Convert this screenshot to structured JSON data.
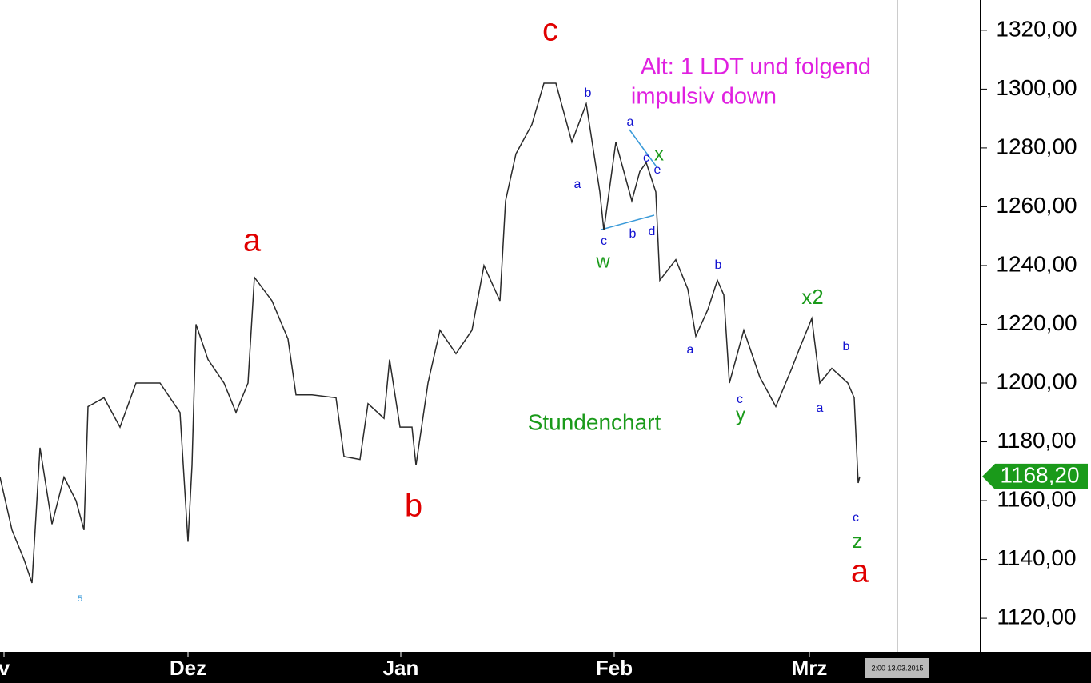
{
  "chart_data": {
    "type": "line",
    "title": "Stundenchart",
    "x": [
      0,
      15,
      30,
      40,
      50,
      65,
      80,
      95,
      105,
      110,
      130,
      150,
      170,
      200,
      225,
      235,
      240,
      245,
      260,
      280,
      295,
      310,
      318,
      340,
      360,
      370,
      390,
      420,
      430,
      450,
      460,
      480,
      487,
      500,
      515,
      520,
      535,
      550,
      570,
      590,
      605,
      625,
      632,
      645,
      665,
      680,
      695,
      715,
      733,
      750,
      755,
      770,
      790,
      800,
      808,
      820,
      825,
      845,
      860,
      870,
      885,
      897,
      905,
      912,
      930,
      950,
      970,
      990,
      1000,
      1015,
      1025,
      1040,
      1060,
      1068,
      1073,
      1075
    ],
    "series": [
      {
        "color": "#2a2a2a",
        "values": [
          1168,
          1150,
          1140,
          1132,
          1178,
          1152,
          1168,
          1160,
          1150,
          1192,
          1195,
          1185,
          1200,
          1200,
          1190,
          1146,
          1172,
          1220,
          1208,
          1200,
          1190,
          1200,
          1236,
          1228,
          1215,
          1196,
          1196,
          1195,
          1175,
          1174,
          1193,
          1188,
          1208,
          1185,
          1185,
          1172,
          1200,
          1218,
          1210,
          1218,
          1240,
          1228,
          1262,
          1278,
          1288,
          1302,
          1302,
          1282,
          1295,
          1265,
          1252,
          1282,
          1262,
          1272,
          1275,
          1265,
          1235,
          1242,
          1232,
          1216,
          1225,
          1235,
          1230,
          1200,
          1218,
          1202,
          1192,
          1205,
          1212,
          1222,
          1200,
          1205,
          1200,
          1195,
          1166,
          1168.2
        ]
      }
    ],
    "xlim": [
      0,
      1225
    ],
    "xticks": [
      {
        "value": 5,
        "label": "v"
      },
      {
        "value": 235,
        "label": "Dez"
      },
      {
        "value": 501,
        "label": "Jan"
      },
      {
        "value": 768,
        "label": "Feb"
      },
      {
        "value": 1012,
        "label": "Mrz"
      }
    ],
    "ylim": [
      1108.6,
      1330.3
    ],
    "yticks": [
      {
        "value": 1120,
        "label": "1120,00"
      },
      {
        "value": 1140,
        "label": "1140,00"
      },
      {
        "value": 1160,
        "label": "1160,00"
      },
      {
        "value": 1180,
        "label": "1180,00"
      },
      {
        "value": 1200,
        "label": "1200,00"
      },
      {
        "value": 1220,
        "label": "1220,00"
      },
      {
        "value": 1240,
        "label": "1240,00"
      },
      {
        "value": 1260,
        "label": "1260,00"
      },
      {
        "value": 1280,
        "label": "1280,00"
      },
      {
        "value": 1300,
        "label": "1300,00"
      },
      {
        "value": 1320,
        "label": "1320,00"
      }
    ],
    "last_value": {
      "value": 1168.2,
      "label": "1168,20"
    },
    "timestamp": "2:00 13.03.2015",
    "corner_note": "5",
    "annotations": [
      {
        "text": "c",
        "color": "#e00000"
      },
      {
        "text": "a",
        "color": "#e00000"
      },
      {
        "text": "b",
        "color": "#e00000"
      },
      {
        "text": "a",
        "color": "#e00000"
      },
      {
        "text": "Alt: 1 LDT und folgend",
        "color": "#e020e0"
      },
      {
        "text": "impulsiv down",
        "color": "#e020e0"
      },
      {
        "text": "x",
        "color": "#1a9a1a"
      },
      {
        "text": "w",
        "color": "#1a9a1a"
      },
      {
        "text": "y",
        "color": "#1a9a1a"
      },
      {
        "text": "x2",
        "color": "#1a9a1a"
      },
      {
        "text": "z",
        "color": "#1a9a1a"
      },
      {
        "text": "b",
        "color": "#1010d0"
      },
      {
        "text": "a",
        "color": "#1010d0"
      },
      {
        "text": "a",
        "color": "#1010d0"
      },
      {
        "text": "c",
        "color": "#1010d0"
      },
      {
        "text": "e",
        "color": "#1010d0"
      },
      {
        "text": "c",
        "color": "#1010d0"
      },
      {
        "text": "b",
        "color": "#1010d0"
      },
      {
        "text": "d",
        "color": "#1010d0"
      },
      {
        "text": "b",
        "color": "#1010d0"
      },
      {
        "text": "a",
        "color": "#1010d0"
      },
      {
        "text": "c",
        "color": "#1010d0"
      },
      {
        "text": "a",
        "color": "#1010d0"
      },
      {
        "text": "b",
        "color": "#1010d0"
      },
      {
        "text": "c",
        "color": "#1010d0"
      }
    ]
  }
}
